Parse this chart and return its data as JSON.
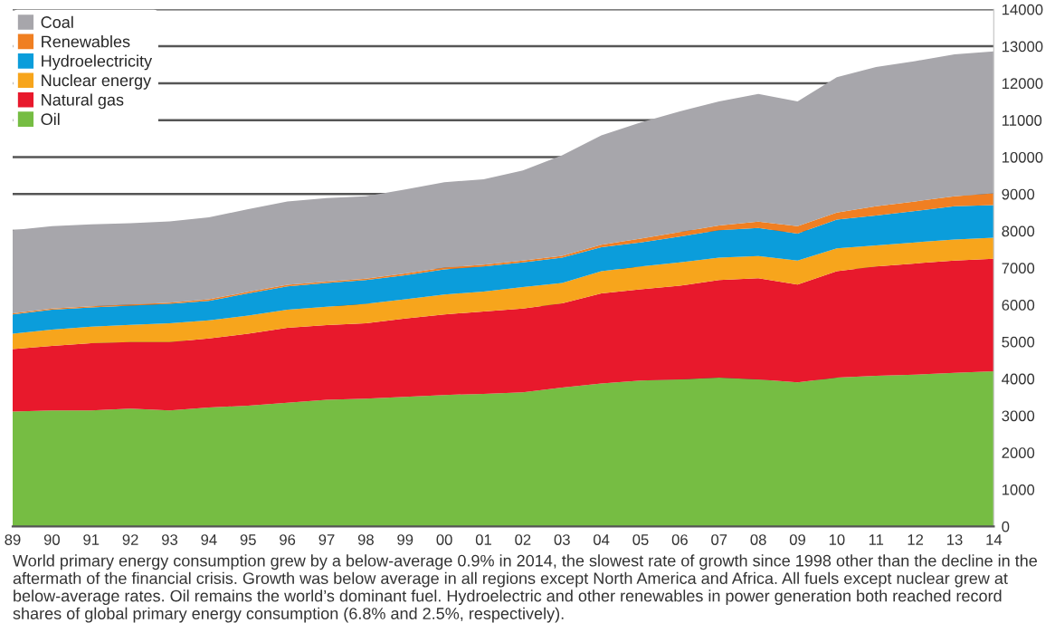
{
  "chart_data": {
    "type": "area",
    "stacked": true,
    "x": [
      1989,
      1990,
      1991,
      1992,
      1993,
      1994,
      1995,
      1996,
      1997,
      1998,
      1999,
      2000,
      2001,
      2002,
      2003,
      2004,
      2005,
      2006,
      2007,
      2008,
      2009,
      2010,
      2011,
      2012,
      2013,
      2014
    ],
    "series": [
      {
        "name": "Oil",
        "color": "#76bd43",
        "values": [
          3110,
          3140,
          3140,
          3190,
          3140,
          3220,
          3270,
          3350,
          3430,
          3460,
          3510,
          3560,
          3590,
          3630,
          3760,
          3870,
          3950,
          3980,
          4030,
          3980,
          3900,
          4030,
          4080,
          4110,
          4160,
          4200
        ]
      },
      {
        "name": "Natural gas",
        "color": "#e8192c",
        "values": [
          1690,
          1750,
          1820,
          1800,
          1850,
          1870,
          1950,
          2030,
          2020,
          2040,
          2120,
          2180,
          2230,
          2270,
          2280,
          2440,
          2470,
          2540,
          2640,
          2740,
          2650,
          2880,
          2960,
          3010,
          3040,
          3050
        ]
      },
      {
        "name": "Nuclear energy",
        "color": "#f7a51c",
        "values": [
          420,
          440,
          450,
          470,
          510,
          490,
          490,
          490,
          500,
          530,
          520,
          540,
          540,
          580,
          550,
          600,
          620,
          630,
          610,
          600,
          650,
          620,
          570,
          570,
          570,
          570
        ]
      },
      {
        "name": "Hydroelectricity",
        "color": "#0b9ddb",
        "values": [
          520,
          540,
          520,
          520,
          530,
          530,
          600,
          630,
          640,
          640,
          650,
          680,
          680,
          670,
          690,
          650,
          650,
          700,
          740,
          760,
          730,
          780,
          810,
          850,
          900,
          880
        ]
      },
      {
        "name": "Renewables",
        "color": "#f07f22",
        "values": [
          30,
          30,
          30,
          30,
          30,
          40,
          40,
          40,
          40,
          40,
          50,
          50,
          50,
          50,
          50,
          70,
          100,
          120,
          130,
          170,
          200,
          190,
          250,
          260,
          270,
          320
        ]
      },
      {
        "name": "Coal",
        "color": "#a7a6ab",
        "values": [
          2250,
          2230,
          2220,
          2200,
          2200,
          2220,
          2240,
          2260,
          2260,
          2230,
          2270,
          2310,
          2310,
          2440,
          2720,
          2960,
          3150,
          3270,
          3360,
          3460,
          3380,
          3660,
          3770,
          3800,
          3840,
          3840
        ]
      }
    ],
    "xlim": [
      1989,
      2014
    ],
    "xticks": [
      {
        "value": 1989,
        "label": "89"
      },
      {
        "value": 1990,
        "label": "90"
      },
      {
        "value": 1991,
        "label": "91"
      },
      {
        "value": 1992,
        "label": "92"
      },
      {
        "value": 1993,
        "label": "93"
      },
      {
        "value": 1994,
        "label": "94"
      },
      {
        "value": 1995,
        "label": "95"
      },
      {
        "value": 1996,
        "label": "96"
      },
      {
        "value": 1997,
        "label": "97"
      },
      {
        "value": 1998,
        "label": "98"
      },
      {
        "value": 1999,
        "label": "99"
      },
      {
        "value": 2000,
        "label": "00"
      },
      {
        "value": 2001,
        "label": "01"
      },
      {
        "value": 2002,
        "label": "02"
      },
      {
        "value": 2003,
        "label": "03"
      },
      {
        "value": 2004,
        "label": "04"
      },
      {
        "value": 2005,
        "label": "05"
      },
      {
        "value": 2006,
        "label": "06"
      },
      {
        "value": 2007,
        "label": "07"
      },
      {
        "value": 2008,
        "label": "08"
      },
      {
        "value": 2009,
        "label": "09"
      },
      {
        "value": 2010,
        "label": "10"
      },
      {
        "value": 2011,
        "label": "11"
      },
      {
        "value": 2012,
        "label": "12"
      },
      {
        "value": 2013,
        "label": "13"
      },
      {
        "value": 2014,
        "label": "14"
      }
    ],
    "ylim": [
      0,
      14000
    ],
    "yticks": [
      0,
      1000,
      2000,
      3000,
      4000,
      5000,
      6000,
      7000,
      8000,
      9000,
      10000,
      11000,
      12000,
      13000,
      14000
    ],
    "grid": "y",
    "legend": "top left",
    "annotations": [
      "World primary energy consumption grew by a below-average 0.9% in 2014, the slowest rate of growth since 1998 other than the decline in the aftermath of the financial crisis. Growth was below average in all regions except North America and Africa. All fuels except nuclear grew at below-average rates. Oil remains the world’s dominant fuel. Hydroelectric and other renewables in power generation both reached record shares of global primary energy consumption (6.8% and 2.5%, respectively)."
    ]
  }
}
